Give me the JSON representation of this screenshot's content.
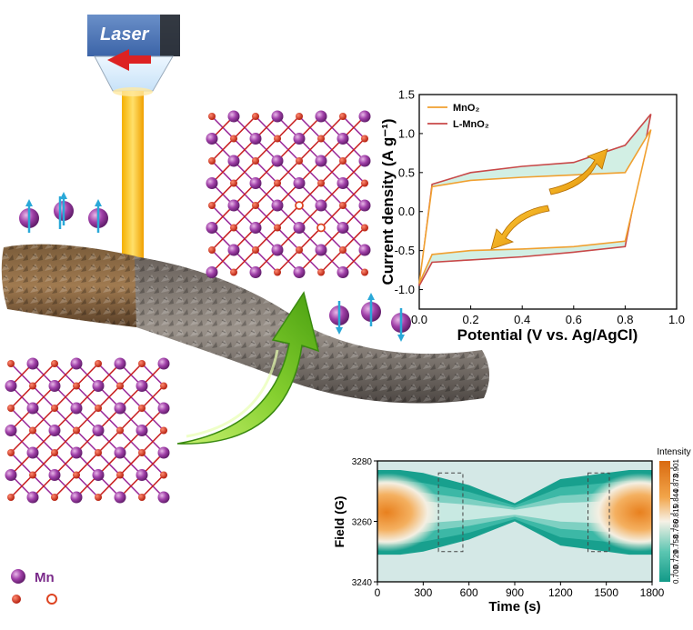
{
  "laser": {
    "label": "Laser"
  },
  "legend": {
    "mn_label": "Mn"
  },
  "chart_data": [
    {
      "type": "line",
      "xlabel": "Potential (V vs. Ag/AgCl)",
      "ylabel": "Current density (A g⁻¹)",
      "xlim": [
        0.0,
        1.0
      ],
      "ylim": [
        -1.25,
        1.5
      ],
      "xticks": [
        "0.0",
        "0.2",
        "0.4",
        "0.6",
        "0.8",
        "1.0"
      ],
      "yticks": [
        "-1.0",
        "-0.5",
        "0.0",
        "0.5",
        "1.0",
        "1.5"
      ],
      "legend_position": "top-left",
      "colors": {
        "MnO2": "#f0a030",
        "L-MnO2": "#c84848",
        "fill": "#bfe8d8"
      },
      "series": [
        {
          "name": "MnO₂",
          "x": [
            0.0,
            0.05,
            0.2,
            0.4,
            0.6,
            0.8,
            0.9,
            0.8,
            0.6,
            0.4,
            0.2,
            0.05,
            0.0
          ],
          "y": [
            -0.92,
            -0.55,
            -0.5,
            -0.48,
            -0.45,
            -0.38,
            1.05,
            0.5,
            0.47,
            0.44,
            0.4,
            0.32,
            -0.92
          ]
        },
        {
          "name": "L-MnO₂",
          "x": [
            0.0,
            0.05,
            0.2,
            0.4,
            0.6,
            0.8,
            0.9,
            0.8,
            0.6,
            0.4,
            0.2,
            0.05,
            0.0
          ],
          "y": [
            -0.95,
            -0.65,
            -0.62,
            -0.58,
            -0.52,
            -0.45,
            1.25,
            0.85,
            0.63,
            0.58,
            0.5,
            0.35,
            -0.95
          ]
        }
      ]
    },
    {
      "type": "heatmap",
      "xlabel": "Time (s)",
      "ylabel": "Field (G)",
      "xlim": [
        0,
        1800
      ],
      "ylim": [
        3240,
        3280
      ],
      "xticks": [
        "0",
        "300",
        "600",
        "900",
        "1200",
        "1500",
        "1800"
      ],
      "yticks": [
        "3240",
        "3260",
        "3280"
      ],
      "colorbar": {
        "title": "Intensity",
        "ticks": [
          "0.901",
          "0.873",
          "0.844",
          "0.815",
          "0.786",
          "0.758",
          "0.729",
          "0.700"
        ]
      },
      "center_field": 3263,
      "half_width": [
        {
          "t": 0,
          "w": 14
        },
        {
          "t": 150,
          "w": 14
        },
        {
          "t": 300,
          "w": 13
        },
        {
          "t": 450,
          "w": 11
        },
        {
          "t": 600,
          "w": 9
        },
        {
          "t": 750,
          "w": 6
        },
        {
          "t": 900,
          "w": 3
        },
        {
          "t": 1050,
          "w": 7
        },
        {
          "t": 1200,
          "w": 11
        },
        {
          "t": 1350,
          "w": 12
        },
        {
          "t": 1500,
          "w": 13
        },
        {
          "t": 1650,
          "w": 14
        },
        {
          "t": 1800,
          "w": 14
        }
      ],
      "highlight_windows": [
        [
          400,
          560
        ],
        [
          1380,
          1520
        ]
      ]
    }
  ]
}
